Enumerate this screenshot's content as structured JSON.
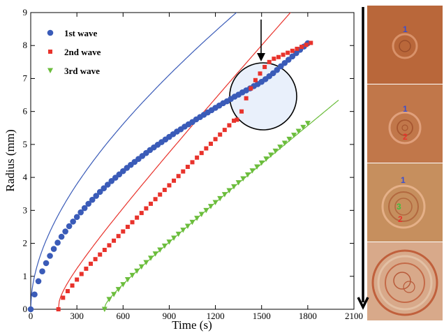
{
  "chart_data": {
    "type": "scatter",
    "xlabel": "Time (s)",
    "ylabel": "Radius (mm)",
    "xlim": [
      0,
      2100
    ],
    "ylim": [
      0,
      9
    ],
    "xticks": [
      0,
      300,
      600,
      900,
      1200,
      1500,
      1800,
      2100
    ],
    "yticks": [
      0,
      1,
      2,
      3,
      4,
      5,
      6,
      7,
      8,
      9
    ],
    "grid": false,
    "legend": "top-left",
    "series": [
      {
        "name": "1st wave",
        "color": "#3a5bb8",
        "marker": "circle",
        "x": [
          0,
          25,
          50,
          75,
          100,
          125,
          150,
          175,
          200,
          225,
          250,
          275,
          300,
          325,
          350,
          375,
          400,
          425,
          450,
          475,
          500,
          525,
          550,
          575,
          600,
          625,
          650,
          675,
          700,
          725,
          750,
          775,
          800,
          825,
          850,
          875,
          900,
          925,
          950,
          975,
          1000,
          1025,
          1050,
          1075,
          1100,
          1125,
          1150,
          1175,
          1200,
          1225,
          1250,
          1275,
          1300,
          1325,
          1350,
          1375,
          1400,
          1425,
          1450,
          1475,
          1500,
          1525,
          1550,
          1575,
          1600,
          1625,
          1650,
          1675,
          1700,
          1725,
          1750,
          1775,
          1800
        ],
        "y": [
          0,
          0.45,
          0.85,
          1.15,
          1.4,
          1.62,
          1.83,
          2.02,
          2.2,
          2.36,
          2.52,
          2.66,
          2.8,
          2.94,
          3.07,
          3.2,
          3.32,
          3.44,
          3.56,
          3.67,
          3.78,
          3.89,
          3.99,
          4.09,
          4.19,
          4.29,
          4.38,
          4.47,
          4.56,
          4.65,
          4.74,
          4.83,
          4.91,
          4.99,
          5.07,
          5.15,
          5.23,
          5.31,
          5.39,
          5.46,
          5.54,
          5.61,
          5.68,
          5.76,
          5.83,
          5.9,
          5.97,
          6.04,
          6.11,
          6.18,
          6.25,
          6.31,
          6.38,
          6.45,
          6.51,
          6.58,
          6.64,
          6.7,
          6.77,
          6.83,
          6.9,
          6.98,
          7.07,
          7.16,
          7.26,
          7.37,
          7.47,
          7.57,
          7.67,
          7.77,
          7.87,
          7.97,
          8.07
        ]
      },
      {
        "name": "2nd wave",
        "color": "#e8332c",
        "marker": "square",
        "x": [
          180,
          210,
          240,
          270,
          300,
          330,
          360,
          390,
          420,
          450,
          480,
          510,
          540,
          570,
          600,
          630,
          660,
          690,
          720,
          750,
          780,
          810,
          840,
          870,
          900,
          930,
          960,
          990,
          1020,
          1050,
          1080,
          1110,
          1140,
          1170,
          1200,
          1230,
          1260,
          1290,
          1320,
          1340,
          1370,
          1400,
          1430,
          1460,
          1490,
          1520,
          1550,
          1580,
          1610,
          1640,
          1670,
          1700,
          1730,
          1760,
          1790,
          1820
        ],
        "y": [
          0,
          0.35,
          0.55,
          0.72,
          0.9,
          1.07,
          1.23,
          1.38,
          1.52,
          1.66,
          1.8,
          1.94,
          2.08,
          2.22,
          2.36,
          2.5,
          2.64,
          2.78,
          2.92,
          3.06,
          3.2,
          3.34,
          3.48,
          3.62,
          3.76,
          3.9,
          4.04,
          4.18,
          4.32,
          4.46,
          4.6,
          4.74,
          4.88,
          5.02,
          5.16,
          5.3,
          5.44,
          5.58,
          5.72,
          5.75,
          6.0,
          6.4,
          6.7,
          6.95,
          7.15,
          7.35,
          7.5,
          7.6,
          7.65,
          7.72,
          7.78,
          7.84,
          7.9,
          7.96,
          8.02,
          8.08
        ]
      },
      {
        "name": "3rd wave",
        "color": "#6bbd3c",
        "marker": "triangle-down",
        "x": [
          480,
          510,
          540,
          570,
          600,
          630,
          660,
          690,
          720,
          750,
          780,
          810,
          840,
          870,
          900,
          930,
          960,
          990,
          1020,
          1050,
          1080,
          1110,
          1140,
          1170,
          1200,
          1230,
          1260,
          1290,
          1320,
          1350,
          1380,
          1410,
          1440,
          1470,
          1500,
          1530,
          1560,
          1590,
          1620,
          1650,
          1680,
          1710,
          1740,
          1770,
          1800
        ],
        "y": [
          0,
          0.3,
          0.45,
          0.6,
          0.75,
          0.9,
          1.03,
          1.16,
          1.29,
          1.42,
          1.55,
          1.68,
          1.8,
          1.92,
          2.04,
          2.16,
          2.28,
          2.4,
          2.52,
          2.64,
          2.76,
          2.88,
          3.0,
          3.12,
          3.24,
          3.36,
          3.48,
          3.6,
          3.72,
          3.84,
          3.96,
          4.08,
          4.2,
          4.32,
          4.44,
          4.56,
          4.68,
          4.8,
          4.92,
          5.04,
          5.16,
          5.28,
          5.4,
          5.52,
          5.64
        ]
      }
    ]
  },
  "photos": {
    "labels": [
      {
        "text": "1",
        "color": "#3a4fd0"
      },
      {
        "text": "1",
        "color": "#3a4fd0"
      },
      {
        "text": "2",
        "color": "#e8332c"
      },
      {
        "text": "1",
        "color": "#3a4fd0"
      },
      {
        "text": "3",
        "color": "#3fbf3f"
      },
      {
        "text": "2",
        "color": "#e8332c"
      }
    ]
  }
}
